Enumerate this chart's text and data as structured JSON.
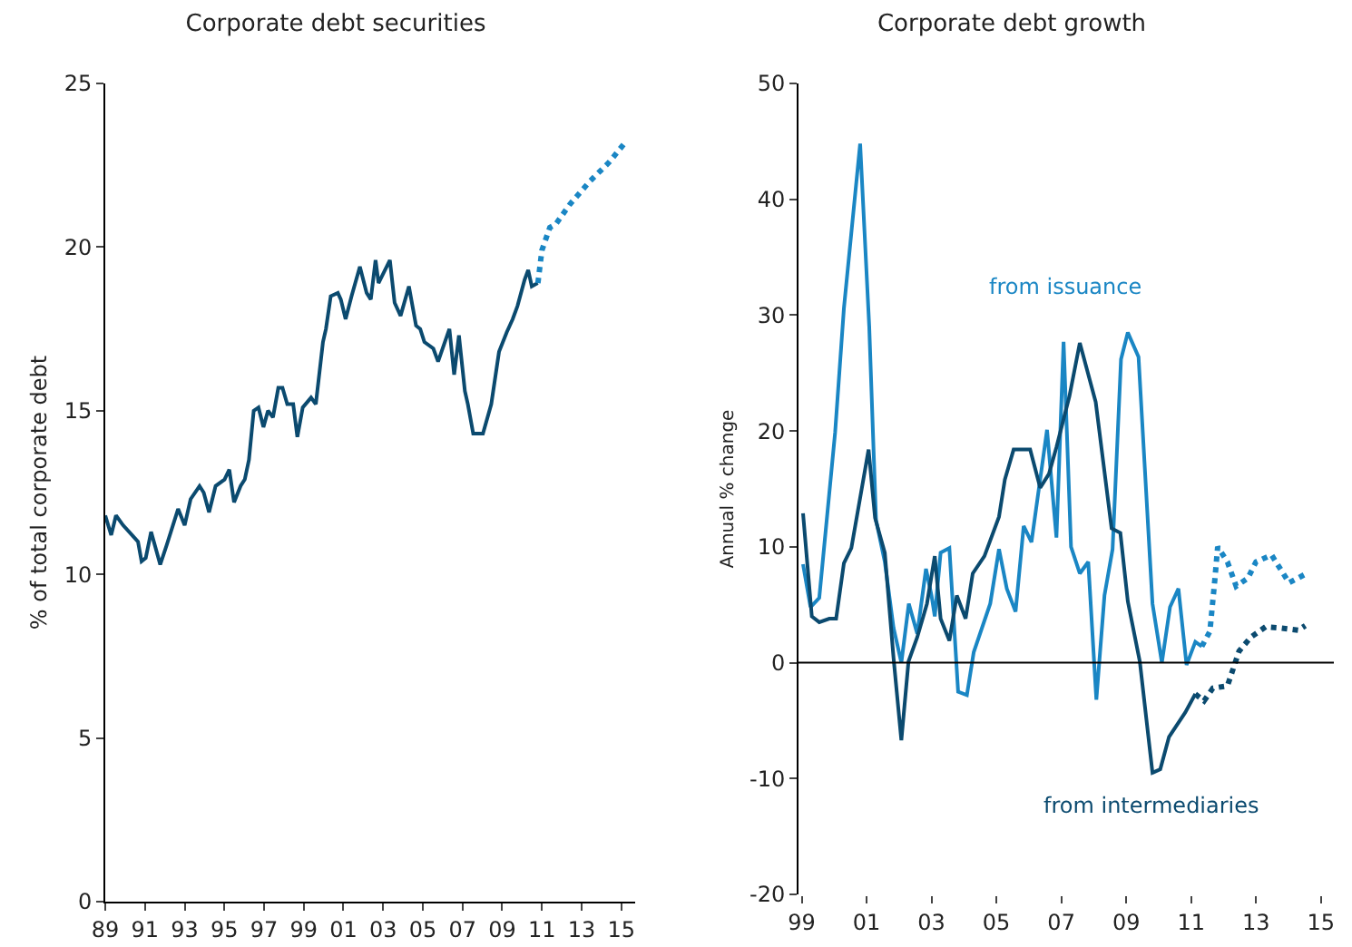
{
  "chart_data": [
    {
      "type": "line",
      "title": "Corporate debt securities",
      "ylabel": "% of total corporate debt",
      "xlim": [
        1989,
        2015.7
      ],
      "ylim": [
        0,
        25
      ],
      "xticks": [
        {
          "value": 1989,
          "label": "89"
        },
        {
          "value": 1991,
          "label": "91"
        },
        {
          "value": 1993,
          "label": "93"
        },
        {
          "value": 1995,
          "label": "95"
        },
        {
          "value": 1997,
          "label": "97"
        },
        {
          "value": 1999,
          "label": "99"
        },
        {
          "value": 2001,
          "label": "01"
        },
        {
          "value": 2003,
          "label": "03"
        },
        {
          "value": 2005,
          "label": "05"
        },
        {
          "value": 2007,
          "label": "07"
        },
        {
          "value": 2009,
          "label": "09"
        },
        {
          "value": 2011,
          "label": "11"
        },
        {
          "value": 2013,
          "label": "13"
        },
        {
          "value": 2015,
          "label": "15"
        }
      ],
      "yticks": [
        0,
        5,
        10,
        15,
        20,
        25
      ],
      "grid": false,
      "legend": false,
      "marker": "none",
      "series": [
        {
          "color": "#0b4a6f",
          "line_style": "solid",
          "x": [
            1989.0,
            1989.3,
            1989.54,
            1989.9,
            1990.35,
            1990.65,
            1990.83,
            1991.04,
            1991.31,
            1991.77,
            1992.1,
            1992.67,
            1993.0,
            1993.3,
            1993.75,
            1993.96,
            1994.23,
            1994.56,
            1995.01,
            1995.25,
            1995.49,
            1995.82,
            1996.03,
            1996.24,
            1996.48,
            1996.72,
            1996.97,
            1997.2,
            1997.45,
            1997.72,
            1997.93,
            1998.17,
            1998.47,
            1998.68,
            1998.95,
            1999.37,
            1999.61,
            1999.97,
            2000.12,
            2000.36,
            2000.72,
            2000.87,
            2001.11,
            2001.41,
            2001.83,
            2002.17,
            2002.38,
            2002.62,
            2002.77,
            2003.34,
            2003.58,
            2003.88,
            2004.3,
            2004.66,
            2004.87,
            2005.08,
            2005.53,
            2005.77,
            2006.34,
            2006.58,
            2006.82,
            2007.12,
            2007.27,
            2007.54,
            2008.03,
            2008.45,
            2008.84,
            2009.23,
            2009.53,
            2009.77,
            2010.13,
            2010.31,
            2010.49,
            2010.79
          ],
          "values": [
            11.8,
            11.2,
            11.8,
            11.5,
            11.2,
            11.0,
            10.4,
            10.5,
            11.3,
            10.3,
            10.9,
            12.0,
            11.5,
            12.3,
            12.7,
            12.5,
            11.9,
            12.7,
            12.9,
            13.2,
            12.2,
            12.7,
            12.9,
            13.5,
            15.0,
            15.1,
            14.5,
            15.0,
            14.8,
            15.7,
            15.7,
            15.2,
            15.2,
            14.2,
            15.1,
            15.4,
            15.2,
            17.1,
            17.5,
            18.5,
            18.6,
            18.4,
            17.8,
            18.5,
            19.4,
            18.6,
            18.4,
            19.6,
            18.9,
            19.6,
            18.3,
            17.9,
            18.8,
            17.6,
            17.5,
            17.1,
            16.9,
            16.5,
            17.5,
            16.1,
            17.3,
            15.6,
            15.2,
            14.3,
            14.3,
            15.2,
            16.8,
            17.4,
            17.8,
            18.2,
            19.0,
            19.3,
            18.8,
            18.9
          ]
        },
        {
          "color": "#1a86c4",
          "line_style": "dotted",
          "x": [
            2010.8,
            2011.0,
            2011.4,
            2011.7,
            2012.4,
            2013.4,
            2014.4,
            2015.2
          ],
          "values": [
            18.9,
            19.9,
            20.6,
            20.7,
            21.3,
            22.0,
            22.6,
            23.2
          ]
        }
      ]
    },
    {
      "type": "line",
      "title": "Corporate debt growth",
      "ylabel": "Annual % change",
      "xlim": [
        1998.9,
        2015.4
      ],
      "ylim": [
        -20,
        50
      ],
      "xticks": [
        {
          "value": 1999,
          "label": "99"
        },
        {
          "value": 2001,
          "label": "01"
        },
        {
          "value": 2003,
          "label": "03"
        },
        {
          "value": 2005,
          "label": "05"
        },
        {
          "value": 2007,
          "label": "07"
        },
        {
          "value": 2009,
          "label": "09"
        },
        {
          "value": 2011,
          "label": "11"
        },
        {
          "value": 2013,
          "label": "13"
        },
        {
          "value": 2015,
          "label": "15"
        }
      ],
      "yticks": [
        -20,
        -10,
        0,
        10,
        20,
        30,
        40,
        50
      ],
      "grid": false,
      "legend": false,
      "marker": "none",
      "ref_lines": [
        {
          "axis": "y",
          "value": 0,
          "color": "#000000"
        }
      ],
      "series": [
        {
          "name": "from issuance",
          "color": "#1a86c4",
          "line_style": "solid",
          "x": [
            1999.04,
            1999.27,
            1999.54,
            2000.03,
            2000.3,
            2000.8,
            2001.08,
            2001.29,
            2001.56,
            2001.83,
            2002.07,
            2002.3,
            2002.56,
            2002.83,
            2003.0,
            2003.1,
            2003.28,
            2003.55,
            2003.82,
            2004.09,
            2004.3,
            2004.81,
            2005.08,
            2005.32,
            2005.59,
            2005.84,
            2006.08,
            2006.56,
            2006.85,
            2007.07,
            2007.3,
            2007.57,
            2007.83,
            2008.08,
            2008.33,
            2008.58,
            2008.84,
            2009.05,
            2009.38,
            2009.81,
            2010.1,
            2010.35,
            2010.61,
            2010.86,
            2011.13,
            2011.33
          ],
          "values": [
            8.5,
            4.8,
            5.6,
            19.9,
            30.6,
            44.8,
            29,
            12.3,
            8.7,
            3,
            0,
            5.1,
            2.5,
            8.1,
            5.8,
            4,
            9.5,
            9.9,
            -2.5,
            -2.8,
            0.9,
            5.1,
            9.8,
            6.4,
            4.4,
            11.8,
            10.4,
            20.1,
            10.8,
            27.7,
            10,
            7.7,
            8.7,
            -3.2,
            5.8,
            9.8,
            26.2,
            28.5,
            26.4,
            5.1,
            0,
            4.8,
            6.4,
            -0.2,
            1.8,
            1.4
          ]
        },
        {
          "name": "from intermediaries",
          "color": "#0b4a6f",
          "line_style": "solid",
          "x": [
            1999.04,
            1999.31,
            1999.54,
            1999.85,
            2000.06,
            2000.3,
            2000.53,
            2001.06,
            2001.26,
            2001.56,
            2001.83,
            2002.07,
            2002.29,
            2002.56,
            2002.86,
            2003.1,
            2003.28,
            2003.55,
            2003.78,
            2004.05,
            2004.27,
            2004.63,
            2005.08,
            2005.26,
            2005.53,
            2006.04,
            2006.35,
            2006.62,
            2006.85,
            2007.25,
            2007.57,
            2008.06,
            2008.55,
            2008.82,
            2009.05,
            2009.42,
            2009.81,
            2010.05,
            2010.32,
            2010.82,
            2011.13
          ],
          "values": [
            12.9,
            4,
            3.5,
            3.8,
            3.8,
            8.6,
            9.9,
            18.4,
            12.5,
            9.5,
            0.4,
            -6.7,
            0.1,
            2.2,
            5.1,
            9.2,
            3.8,
            1.9,
            5.8,
            3.8,
            7.7,
            9.2,
            12.6,
            15.8,
            18.4,
            18.4,
            15.1,
            16.3,
            18.6,
            23,
            27.6,
            22.5,
            11.6,
            11.2,
            5.3,
            0.1,
            -9.5,
            -9.2,
            -6.4,
            -4.3,
            -2.7
          ]
        },
        {
          "color": "#1a86c4",
          "line_style": "dotted",
          "x": [
            2011.33,
            2011.58,
            2011.73,
            2011.82,
            2012.12,
            2012.39,
            2012.75,
            2013.0,
            2013.48,
            2014.02,
            2014.56
          ],
          "values": [
            1.4,
            2.7,
            7.1,
            10,
            8.7,
            6.6,
            7.3,
            8.7,
            9.3,
            6.9,
            7.7
          ]
        },
        {
          "color": "#0b4a6f",
          "line_style": "dotted",
          "x": [
            2011.13,
            2011.4,
            2011.67,
            2012.12,
            2012.48,
            2012.84,
            2013.3,
            2013.75,
            2014.3,
            2014.52
          ],
          "values": [
            -2.7,
            -3.3,
            -2.2,
            -2,
            1,
            2.2,
            3.1,
            3,
            2.8,
            3.2
          ]
        }
      ]
    }
  ]
}
